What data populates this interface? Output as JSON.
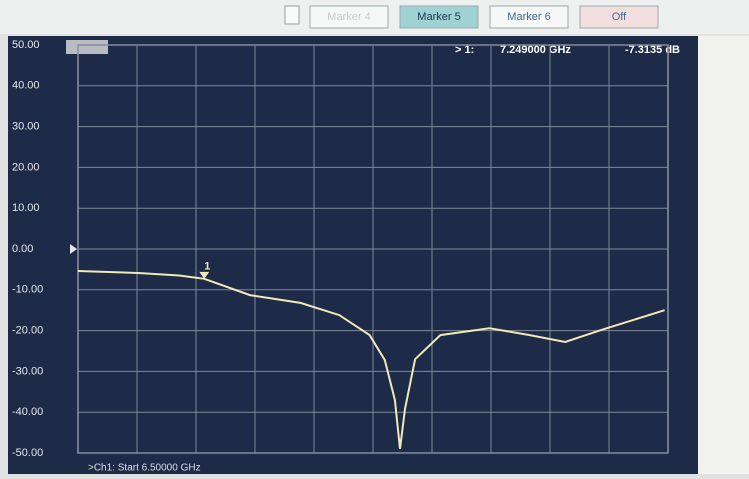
{
  "toolbar": {
    "buttons": [
      "Marker 4",
      "Marker 5",
      "Marker 6",
      "Off"
    ],
    "active": 1
  },
  "chart_data": {
    "type": "line",
    "x": [
      6.5,
      6.87,
      7.1,
      7.249,
      7.52,
      7.82,
      8.05,
      8.23,
      8.32,
      8.38,
      8.41,
      8.44,
      8.5,
      8.65,
      8.94,
      9.18,
      9.39,
      9.6,
      9.98
    ],
    "series": [
      {
        "color": "#f1e9b8",
        "values": [
          -5.4,
          -5.9,
          -6.5,
          -7.3135,
          -11.3,
          -13.2,
          -16.2,
          -21.1,
          -27.2,
          -37.0,
          -49.0,
          -39.2,
          -27.0,
          -21.1,
          -19.4,
          -21.1,
          -22.8,
          -19.9,
          -15.0
        ]
      }
    ],
    "xlim": [
      6.5,
      10
    ],
    "xticks": [
      6.85,
      7.2,
      7.55,
      7.9,
      8.25,
      8.6,
      8.95,
      9.3,
      9.65
    ],
    "ylim": [
      -50,
      50
    ],
    "yticks": [
      {
        "value": 50,
        "label": "50.00"
      },
      {
        "value": 40,
        "label": "40.00"
      },
      {
        "value": 30,
        "label": "30.00"
      },
      {
        "value": 20,
        "label": "20.00"
      },
      {
        "value": 10,
        "label": "10.00"
      },
      {
        "value": 0,
        "label": "0.00"
      },
      {
        "value": -10,
        "label": "-10.00"
      },
      {
        "value": -20,
        "label": "-20.00"
      },
      {
        "value": -30,
        "label": "-30.00"
      },
      {
        "value": -40,
        "label": "-40.00"
      },
      {
        "value": -50,
        "label": "-50.00"
      }
    ],
    "grid": true,
    "marker": {
      "label": "1",
      "x": 7.249,
      "value": -7.3135
    },
    "marker_readout": {
      "index": "> 1:",
      "frequency": "7.249000 GHz",
      "value": "-7.3135 dB"
    },
    "footer": ">Ch1: Start 6.50000 GHz"
  }
}
